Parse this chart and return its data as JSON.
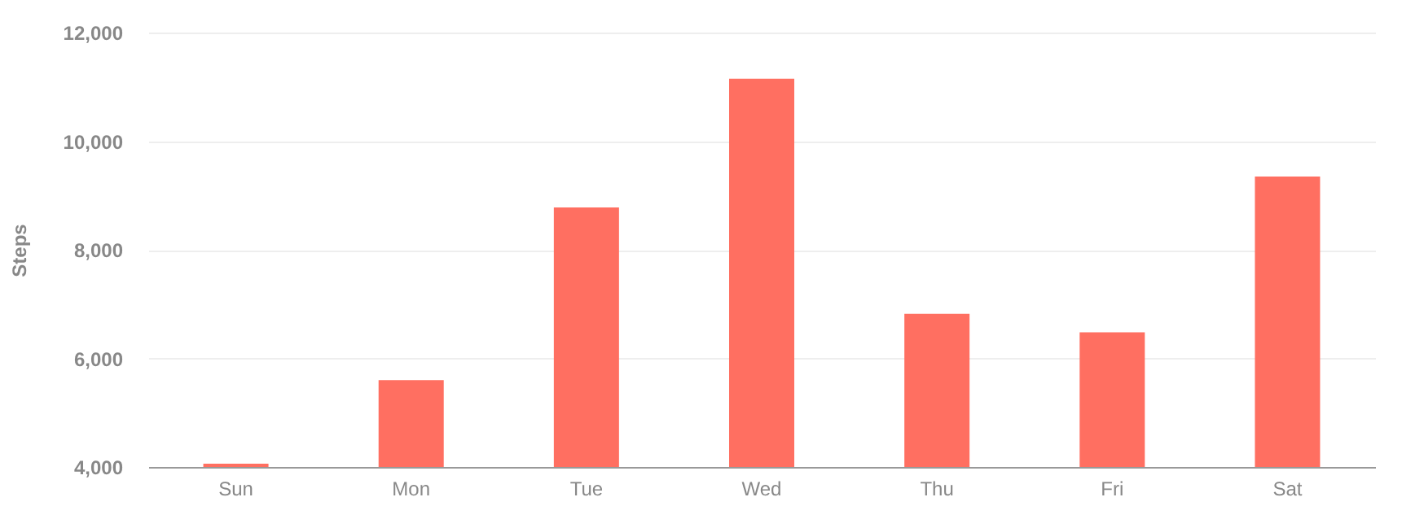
{
  "chart_data": {
    "type": "bar",
    "ylabel": "Steps",
    "categories": [
      "Sun",
      "Mon",
      "Tue",
      "Wed",
      "Thu",
      "Fri",
      "Sat"
    ],
    "values": [
      4060,
      5600,
      8780,
      11150,
      6820,
      6480,
      9350
    ],
    "color": "#ff6f61",
    "ylim": [
      4000,
      12000
    ],
    "yticks": [
      {
        "value": 4000,
        "label": "4,000"
      },
      {
        "value": 6000,
        "label": "6,000"
      },
      {
        "value": 8000,
        "label": "8,000"
      },
      {
        "value": 10000,
        "label": "10,000"
      },
      {
        "value": 12000,
        "label": "12,000"
      }
    ],
    "grid": "y"
  }
}
